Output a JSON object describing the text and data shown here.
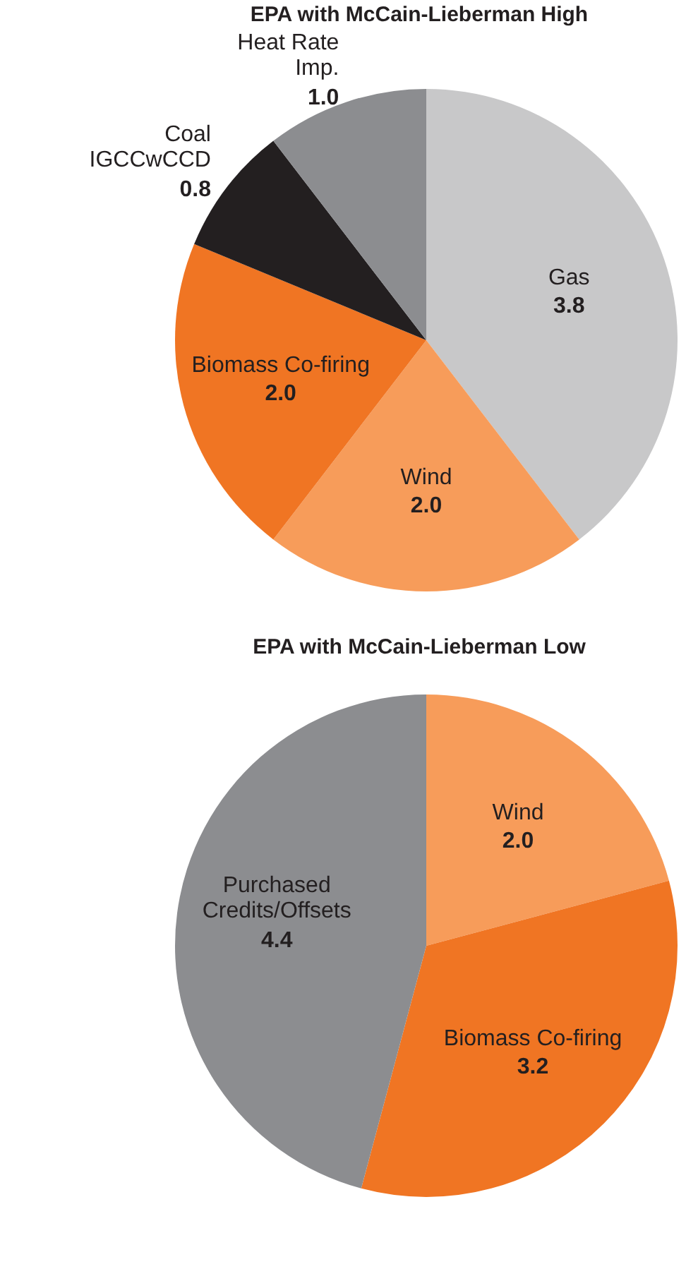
{
  "chart_data": [
    {
      "type": "pie",
      "title": "EPA with McCain-Lieberman High",
      "categories": [
        "Gas",
        "Wind",
        "Biomass Co-firing",
        "Coal\nIGCCwCCD",
        "Heat Rate\nImp."
      ],
      "values": [
        3.8,
        2.0,
        2.0,
        0.8,
        1.0
      ],
      "colors": [
        "#c8c8c9",
        "#f79c5a",
        "#f07523",
        "#231f20",
        "#8c8d90"
      ],
      "value_labels": [
        "3.8",
        "2.0",
        "2.0",
        "0.8",
        "1.0"
      ],
      "legend": false
    },
    {
      "type": "pie",
      "title": "EPA with McCain-Lieberman Low",
      "categories": [
        "Wind",
        "Biomass Co-firing",
        "Purchased\nCredits/Offsets"
      ],
      "values": [
        2.0,
        3.2,
        4.4
      ],
      "colors": [
        "#f79c5a",
        "#f07523",
        "#8c8d90"
      ],
      "value_labels": [
        "2.0",
        "3.2",
        "4.4"
      ],
      "legend": false
    }
  ]
}
